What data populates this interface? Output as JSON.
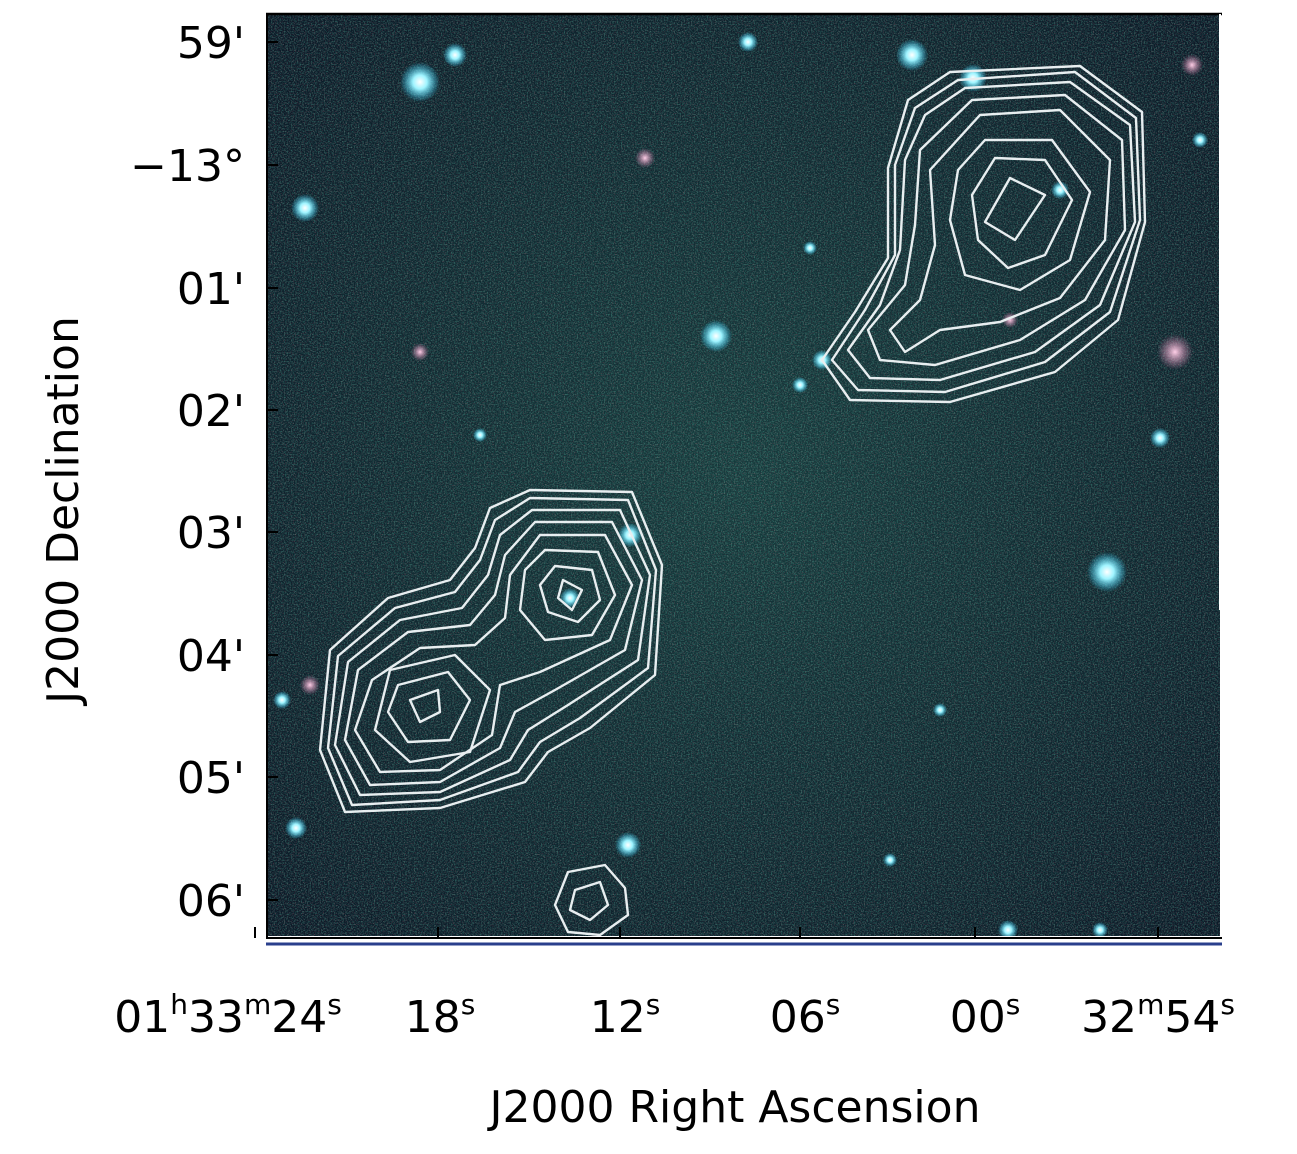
{
  "figure": {
    "colors": {
      "sky_dark": "#0a1420",
      "sky_mid": "#12323a",
      "contour": "#e8eef0",
      "frame": "#000000",
      "frame_blue": "#2a3f8c"
    },
    "y_axis": {
      "title": "J2000 Declination",
      "tick_labels": [
        "59'",
        "−13°",
        "01'",
        "02'",
        "03'",
        "04'",
        "05'",
        "06'"
      ]
    },
    "x_axis": {
      "title": "J2000 Right Ascension",
      "tick_labels": [
        {
          "parts": [
            "01",
            "h",
            "33",
            "m",
            "24",
            "s"
          ]
        },
        {
          "parts": [
            "18",
            "s"
          ]
        },
        {
          "parts": [
            "12",
            "s"
          ]
        },
        {
          "parts": [
            "06",
            "s"
          ]
        },
        {
          "parts": [
            "00",
            "s"
          ]
        },
        {
          "parts": [
            "32",
            "m",
            "54",
            "s"
          ]
        }
      ]
    }
  }
}
